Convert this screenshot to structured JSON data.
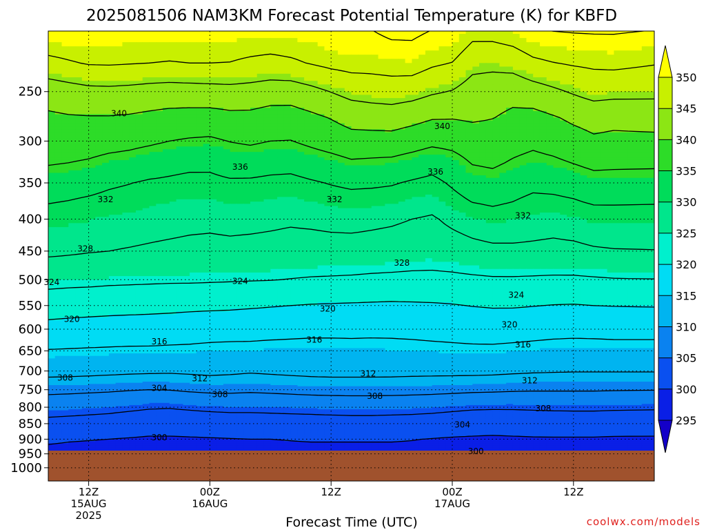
{
  "title": "2025081506 NAM3KM Forecast Potential Temperature (K) for KBFD",
  "xlabel": "Forecast Time (UTC)",
  "credit": "coolwx.com/models",
  "colors": {
    "background": "#ffffff",
    "ground": "#a0522d",
    "contour_line": "#000000",
    "grid": "#000000"
  },
  "chart_data": {
    "type": "heatmap",
    "title": "2025081506 NAM3KM Forecast Potential Temperature (K) for KBFD",
    "xlabel": "Forecast Time (UTC)",
    "ylabel": "",
    "units": "K",
    "x_unit": "forecast hour from 2025-08-15 06Z",
    "x_range": [
      0,
      90
    ],
    "y_scale": "log (pressure, hPa, increasing downward)",
    "y_range_hPa": [
      1050,
      200
    ],
    "yticks": [
      250,
      300,
      350,
      400,
      450,
      500,
      550,
      600,
      650,
      700,
      750,
      800,
      850,
      900,
      950,
      1000
    ],
    "xticks": [
      {
        "hour": 6,
        "lines": [
          "12Z",
          "15AUG",
          "2025"
        ]
      },
      {
        "hour": 24,
        "lines": [
          "00Z",
          "16AUG"
        ]
      },
      {
        "hour": 42,
        "lines": [
          "12Z"
        ]
      },
      {
        "hour": 60,
        "lines": [
          "00Z",
          "17AUG"
        ]
      },
      {
        "hour": 78,
        "lines": [
          "12Z"
        ]
      }
    ],
    "grid": "dotted at labeled ticks",
    "colorbar": {
      "position": "right",
      "levels": [
        295,
        300,
        305,
        310,
        315,
        320,
        325,
        330,
        335,
        340,
        345,
        350
      ],
      "labels": [
        "350",
        "345",
        "340",
        "335",
        "330",
        "325",
        "320",
        "315",
        "310",
        "305",
        "300",
        "295"
      ],
      "colors": [
        "#1400c8",
        "#0a1fe6",
        "#0a50f0",
        "#0a82f0",
        "#00b4f0",
        "#00dcf4",
        "#00f0cd",
        "#00e68c",
        "#00dc5a",
        "#2ddc28",
        "#8ce614",
        "#c8f000",
        "#ffff00"
      ],
      "extend": "both"
    },
    "contour_interval": 4,
    "contour_range": [
      296,
      352
    ],
    "contour_labels": [
      {
        "text": "340",
        "hour": 10.5,
        "p": 271
      },
      {
        "text": "340",
        "hour": 58.5,
        "p": 284
      },
      {
        "text": "336",
        "hour": 28.5,
        "p": 330
      },
      {
        "text": "336",
        "hour": 57.5,
        "p": 336
      },
      {
        "text": "332",
        "hour": 8.5,
        "p": 372
      },
      {
        "text": "332",
        "hour": 42.5,
        "p": 372
      },
      {
        "text": "332",
        "hour": 70.5,
        "p": 395
      },
      {
        "text": "328",
        "hour": 5.5,
        "p": 446
      },
      {
        "text": "328",
        "hour": 52.5,
        "p": 470
      },
      {
        "text": "324",
        "hour": 0.5,
        "p": 505
      },
      {
        "text": "324",
        "hour": 28.5,
        "p": 503
      },
      {
        "text": "324",
        "hour": 69.5,
        "p": 529
      },
      {
        "text": "320",
        "hour": 3.5,
        "p": 578
      },
      {
        "text": "320",
        "hour": 41.5,
        "p": 557
      },
      {
        "text": "320",
        "hour": 68.5,
        "p": 590
      },
      {
        "text": "316",
        "hour": 16.5,
        "p": 628
      },
      {
        "text": "316",
        "hour": 39.5,
        "p": 624
      },
      {
        "text": "316",
        "hour": 70.5,
        "p": 635
      },
      {
        "text": "312",
        "hour": 22.5,
        "p": 720
      },
      {
        "text": "312",
        "hour": 47.5,
        "p": 707
      },
      {
        "text": "312",
        "hour": 71.5,
        "p": 725
      },
      {
        "text": "308",
        "hour": 2.5,
        "p": 718
      },
      {
        "text": "308",
        "hour": 25.5,
        "p": 763
      },
      {
        "text": "308",
        "hour": 48.5,
        "p": 768
      },
      {
        "text": "308",
        "hour": 73.5,
        "p": 804
      },
      {
        "text": "304",
        "hour": 16.5,
        "p": 746
      },
      {
        "text": "304",
        "hour": 61.5,
        "p": 853
      },
      {
        "text": "300",
        "hour": 16.5,
        "p": 895
      },
      {
        "text": "300",
        "hour": 63.5,
        "p": 941
      }
    ],
    "ground_top_hPa": 950,
    "columns_hour": [
      0,
      3,
      6,
      9,
      12,
      15,
      18,
      21,
      24,
      27,
      30,
      33,
      36,
      39,
      42,
      45,
      48,
      51,
      54,
      57,
      60,
      63,
      66,
      69,
      72,
      75,
      78,
      81,
      84,
      87
    ],
    "levels_hPa": [
      200,
      225,
      250,
      275,
      300,
      325,
      350,
      375,
      400,
      450,
      500,
      550,
      600,
      650,
      700,
      725,
      750,
      775,
      800,
      825,
      850,
      875,
      900,
      925
    ],
    "theta_K": [
      [
        352.0,
        352.0,
        352.0,
        352.0,
        351.0,
        351.0,
        351.0,
        351.0,
        351.0,
        351.0,
        351.0,
        351.0,
        351.0,
        351.0,
        352.0,
        352.0,
        352.0,
        353.0,
        353.0,
        352.0,
        352.0,
        349.5,
        349.6,
        350.4,
        351.8,
        352.2,
        352.4,
        352.5,
        352.5,
        352.0
      ],
      [
        346.8,
        347.6,
        348.3,
        348.4,
        348.2,
        348.0,
        347.8,
        348.0,
        348.0,
        347.9,
        347.3,
        346.9,
        347.4,
        348.2,
        349.0,
        349.4,
        349.4,
        349.7,
        349.9,
        348.6,
        347.9,
        345.3,
        345.1,
        345.6,
        347.2,
        347.9,
        348.4,
        348.7,
        348.9,
        348.2
      ],
      [
        341.7,
        342.3,
        342.9,
        343.0,
        342.8,
        342.4,
        342.2,
        342.3,
        342.5,
        342.7,
        342.5,
        342.0,
        341.9,
        342.9,
        344.1,
        345.3,
        345.7,
        346.0,
        345.6,
        344.5,
        343.8,
        342.1,
        341.6,
        341.1,
        342.2,
        343.3,
        344.4,
        345.5,
        345.2,
        345.0
      ],
      [
        339.4,
        339.7,
        339.8,
        339.8,
        339.6,
        339.2,
        338.8,
        338.6,
        338.5,
        339.0,
        339.0,
        338.3,
        338.3,
        339.2,
        340.2,
        341.4,
        341.8,
        342.0,
        341.2,
        340.3,
        340.2,
        340.5,
        340.1,
        339.3,
        338.8,
        339.7,
        340.7,
        341.4,
        341.1,
        341.5
      ],
      [
        338.3,
        338.1,
        337.8,
        337.4,
        337.1,
        336.6,
        336.0,
        335.6,
        335.4,
        336.1,
        336.5,
        336.0,
        335.9,
        336.8,
        337.7,
        338.6,
        338.5,
        338.5,
        337.8,
        336.9,
        337.2,
        338.1,
        338.3,
        337.5,
        336.9,
        337.6,
        338.5,
        339.4,
        339.1,
        339.1
      ],
      [
        336.3,
        336.0,
        335.6,
        334.9,
        334.5,
        333.8,
        333.2,
        332.9,
        332.8,
        333.7,
        333.9,
        333.4,
        333.2,
        334.0,
        334.6,
        335.5,
        335.3,
        335.1,
        334.3,
        333.5,
        334.5,
        336.2,
        336.6,
        335.6,
        334.8,
        335.3,
        336.1,
        337.0,
        336.8,
        336.7
      ],
      [
        334.0,
        333.6,
        333.2,
        332.5,
        332.1,
        331.6,
        331.4,
        331.0,
        331.1,
        331.5,
        331.4,
        331.1,
        331.0,
        331.6,
        332.2,
        332.7,
        332.6,
        332.3,
        331.6,
        331.0,
        332.5,
        334.1,
        334.5,
        333.6,
        332.9,
        333.1,
        333.6,
        334.4,
        334.4,
        334.3
      ],
      [
        332.2,
        331.9,
        331.5,
        331.1,
        330.8,
        330.4,
        330.0,
        329.8,
        329.8,
        330.2,
        330.1,
        329.8,
        329.6,
        330.0,
        330.4,
        330.7,
        330.5,
        330.3,
        329.7,
        329.2,
        330.8,
        332.1,
        332.6,
        332.0,
        331.2,
        331.3,
        331.7,
        332.4,
        332.4,
        332.3
      ],
      [
        330.6,
        330.3,
        330.1,
        329.7,
        329.5,
        329.2,
        329.0,
        328.8,
        328.7,
        328.9,
        328.8,
        328.6,
        328.4,
        328.6,
        328.9,
        329.1,
        328.8,
        328.5,
        328.0,
        327.6,
        328.8,
        329.8,
        330.4,
        330.1,
        329.5,
        329.3,
        329.7,
        330.3,
        330.4,
        330.3
      ],
      [
        328.7,
        328.5,
        328.2,
        328.0,
        327.8,
        327.6,
        327.4,
        327.2,
        327.1,
        327.2,
        327.1,
        327.0,
        326.8,
        326.7,
        326.7,
        326.6,
        326.5,
        326.3,
        326.0,
        325.8,
        326.2,
        326.8,
        327.2,
        327.3,
        327.3,
        327.1,
        327.2,
        327.6,
        327.8,
        327.9
      ],
      [
        325.3,
        325.1,
        325.0,
        324.8,
        324.7,
        324.6,
        324.5,
        324.5,
        324.4,
        324.3,
        324.2,
        324.1,
        323.9,
        323.7,
        323.6,
        323.5,
        323.3,
        323.2,
        323.1,
        323.1,
        323.2,
        323.4,
        323.6,
        323.6,
        323.5,
        323.4,
        323.4,
        323.6,
        323.8,
        323.9
      ],
      [
        321.8,
        321.6,
        321.5,
        321.3,
        321.2,
        321.1,
        321.0,
        320.8,
        320.7,
        320.6,
        320.4,
        320.2,
        320.0,
        319.8,
        319.7,
        319.6,
        319.5,
        319.4,
        319.5,
        319.6,
        319.8,
        320.1,
        320.3,
        320.3,
        320.1,
        319.9,
        319.8,
        320.0,
        320.1,
        320.2
      ],
      [
        318.8,
        318.6,
        318.4,
        318.3,
        318.2,
        318.1,
        317.9,
        317.8,
        317.6,
        317.5,
        317.4,
        317.2,
        317.0,
        316.9,
        316.9,
        316.9,
        316.8,
        316.8,
        316.9,
        317.1,
        317.3,
        317.5,
        317.6,
        317.5,
        317.3,
        317.1,
        317.0,
        317.1,
        317.2,
        317.2
      ],
      [
        315.8,
        315.7,
        315.6,
        315.5,
        315.4,
        315.4,
        315.3,
        315.2,
        315.0,
        314.9,
        314.9,
        314.8,
        314.8,
        314.7,
        314.7,
        314.8,
        314.8,
        314.9,
        315.0,
        315.1,
        315.2,
        315.3,
        315.3,
        315.1,
        314.9,
        314.7,
        314.6,
        314.6,
        314.7,
        314.7
      ],
      [
        313.3,
        313.2,
        313.1,
        312.9,
        312.7,
        312.6,
        312.5,
        312.7,
        312.9,
        312.7,
        312.4,
        312.6,
        312.8,
        313.0,
        313.1,
        313.1,
        313.1,
        313.0,
        312.9,
        312.9,
        312.9,
        312.9,
        312.8,
        312.6,
        312.4,
        312.3,
        312.2,
        312.2,
        312.2,
        312.2
      ],
      [
        311.3,
        311.2,
        311.0,
        310.8,
        310.6,
        310.4,
        310.4,
        310.7,
        311.0,
        310.9,
        310.6,
        310.9,
        311.1,
        311.3,
        311.4,
        311.4,
        311.4,
        311.4,
        311.3,
        311.2,
        311.1,
        311.0,
        310.9,
        310.6,
        310.4,
        310.3,
        310.3,
        310.3,
        310.3,
        310.3
      ],
      [
        309.0,
        308.9,
        308.7,
        308.5,
        308.2,
        308.0,
        308.1,
        308.5,
        308.8,
        308.8,
        308.6,
        308.8,
        309.0,
        309.2,
        309.3,
        309.3,
        309.3,
        309.3,
        309.2,
        309.1,
        308.9,
        308.7,
        308.6,
        308.4,
        308.3,
        308.3,
        308.3,
        308.3,
        308.2,
        308.1
      ],
      [
        307.2,
        307.0,
        306.8,
        306.6,
        306.3,
        305.9,
        306.0,
        306.4,
        306.7,
        306.8,
        306.7,
        306.8,
        307.0,
        307.2,
        307.3,
        307.4,
        307.4,
        307.3,
        307.2,
        307.0,
        306.8,
        306.5,
        306.4,
        306.3,
        306.3,
        306.4,
        306.4,
        306.4,
        306.3,
        306.2
      ],
      [
        305.6,
        305.4,
        305.2,
        305.0,
        304.7,
        304.3,
        304.2,
        304.5,
        304.8,
        304.9,
        304.9,
        305.0,
        305.1,
        305.2,
        305.4,
        305.4,
        305.4,
        305.4,
        305.3,
        305.1,
        304.8,
        304.5,
        304.4,
        304.4,
        304.5,
        304.6,
        304.6,
        304.6,
        304.5,
        304.4
      ],
      [
        304.3,
        304.1,
        303.9,
        303.7,
        303.3,
        303.0,
        302.9,
        303.1,
        303.3,
        303.5,
        303.5,
        303.6,
        303.7,
        303.8,
        303.9,
        304.0,
        304.0,
        303.9,
        303.8,
        303.6,
        303.3,
        303.0,
        302.9,
        303.0,
        303.1,
        303.2,
        303.3,
        303.3,
        303.2,
        303.1
      ],
      [
        302.9,
        302.7,
        302.5,
        302.3,
        302.0,
        301.8,
        301.7,
        301.8,
        302.0,
        302.1,
        302.2,
        302.3,
        302.4,
        302.5,
        302.6,
        302.7,
        302.7,
        302.6,
        302.5,
        302.3,
        302.0,
        301.8,
        301.7,
        301.8,
        301.8,
        301.9,
        302.0,
        302.0,
        301.9,
        301.8
      ],
      [
        301.6,
        301.4,
        301.2,
        301.1,
        300.9,
        300.6,
        300.6,
        300.7,
        300.8,
        300.9,
        301.0,
        301.2,
        301.2,
        301.3,
        301.4,
        301.4,
        301.5,
        301.4,
        301.3,
        301.0,
        300.8,
        300.6,
        300.5,
        300.6,
        300.7,
        300.8,
        300.8,
        300.8,
        300.7,
        300.6
      ],
      [
        300.4,
        300.2,
        300.1,
        300.0,
        299.8,
        299.6,
        299.6,
        299.7,
        299.8,
        299.9,
        300.0,
        300.0,
        300.1,
        300.2,
        300.2,
        300.2,
        300.2,
        300.2,
        300.1,
        299.9,
        299.7,
        299.6,
        299.5,
        299.6,
        299.7,
        299.7,
        299.7,
        299.7,
        299.6,
        299.6
      ],
      [
        299.2,
        299.1,
        299.0,
        298.9,
        298.8,
        298.7,
        298.7,
        298.8,
        298.9,
        298.9,
        299.0,
        299.0,
        299.1,
        299.1,
        299.1,
        299.1,
        299.1,
        299.1,
        299.0,
        298.9,
        298.7,
        298.6,
        298.6,
        298.6,
        298.6,
        298.6,
        298.6,
        298.6,
        298.5,
        298.5
      ]
    ]
  }
}
